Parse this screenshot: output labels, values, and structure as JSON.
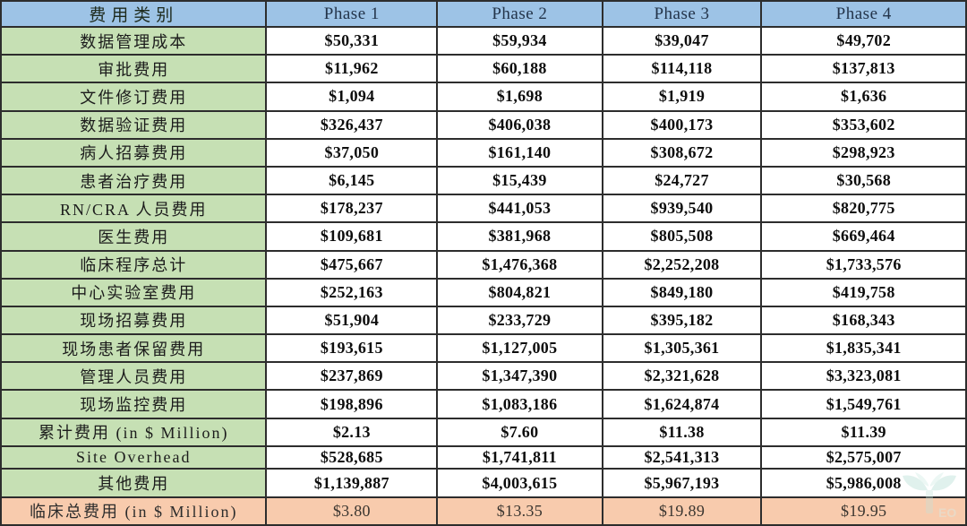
{
  "chart_data": {
    "type": "table",
    "title": "",
    "header": {
      "category": "费用类别",
      "phases": [
        "Phase 1",
        "Phase 2",
        "Phase 3",
        "Phase 4"
      ]
    },
    "rows": [
      {
        "label": "数据管理成本",
        "values": [
          "$50,331",
          "$59,934",
          "$39,047",
          "$49,702"
        ]
      },
      {
        "label": "审批费用",
        "values": [
          "$11,962",
          "$60,188",
          "$114,118",
          "$137,813"
        ]
      },
      {
        "label": "文件修订费用",
        "values": [
          "$1,094",
          "$1,698",
          "$1,919",
          "$1,636"
        ]
      },
      {
        "label": "数据验证费用",
        "values": [
          "$326,437",
          "$406,038",
          "$400,173",
          "$353,602"
        ]
      },
      {
        "label": "病人招募费用",
        "values": [
          "$37,050",
          "$161,140",
          "$308,672",
          "$298,923"
        ]
      },
      {
        "label": "患者治疗费用",
        "values": [
          "$6,145",
          "$15,439",
          "$24,727",
          "$30,568"
        ]
      },
      {
        "label": "RN/CRA 人员费用",
        "values": [
          "$178,237",
          "$441,053",
          "$939,540",
          "$820,775"
        ]
      },
      {
        "label": "医生费用",
        "values": [
          "$109,681",
          "$381,968",
          "$805,508",
          "$669,464"
        ]
      },
      {
        "label": "临床程序总计",
        "values": [
          "$475,667",
          "$1,476,368",
          "$2,252,208",
          "$1,733,576"
        ]
      },
      {
        "label": "中心实验室费用",
        "values": [
          "$252,163",
          "$804,821",
          "$849,180",
          "$419,758"
        ]
      },
      {
        "label": "现场招募费用",
        "values": [
          "$51,904",
          "$233,729",
          "$395,182",
          "$168,343"
        ]
      },
      {
        "label": "现场患者保留费用",
        "values": [
          "$193,615",
          "$1,127,005",
          "$1,305,361",
          "$1,835,341"
        ]
      },
      {
        "label": "管理人员费用",
        "values": [
          "$237,869",
          "$1,347,390",
          "$2,321,628",
          "$3,323,081"
        ]
      },
      {
        "label": "现场监控费用",
        "values": [
          "$198,896",
          "$1,083,186",
          "$1,624,874",
          "$1,549,761"
        ]
      },
      {
        "label": "累计费用 (in $ Million)",
        "values": [
          "$2.13",
          "$7.60",
          "$11.38",
          "$11.39"
        ]
      },
      {
        "label": "Site Overhead",
        "values": [
          "$528,685",
          "$1,741,811",
          "$2,541,313",
          "$2,575,007"
        ]
      },
      {
        "label": "其他费用",
        "values": [
          "$1,139,887",
          "$4,003,615",
          "$5,967,193",
          "$5,986,008"
        ]
      },
      {
        "label": "临床总费用 (in $ Million)",
        "values": [
          "$3.80",
          "$13.35",
          "$19.89",
          "$19.95"
        ],
        "total": true
      }
    ],
    "layout": {
      "grid": "on",
      "column_count": 5
    }
  },
  "colors": {
    "header_bg": "#9DC3E6",
    "label_bg": "#C6E0B4",
    "total_bg": "#F8CBAD",
    "value_bg": "#ffffff",
    "border": "#2d2d2d",
    "watermark_teal": "#9fcfc2"
  },
  "watermark": {
    "name": "eo-sprout-logo"
  }
}
